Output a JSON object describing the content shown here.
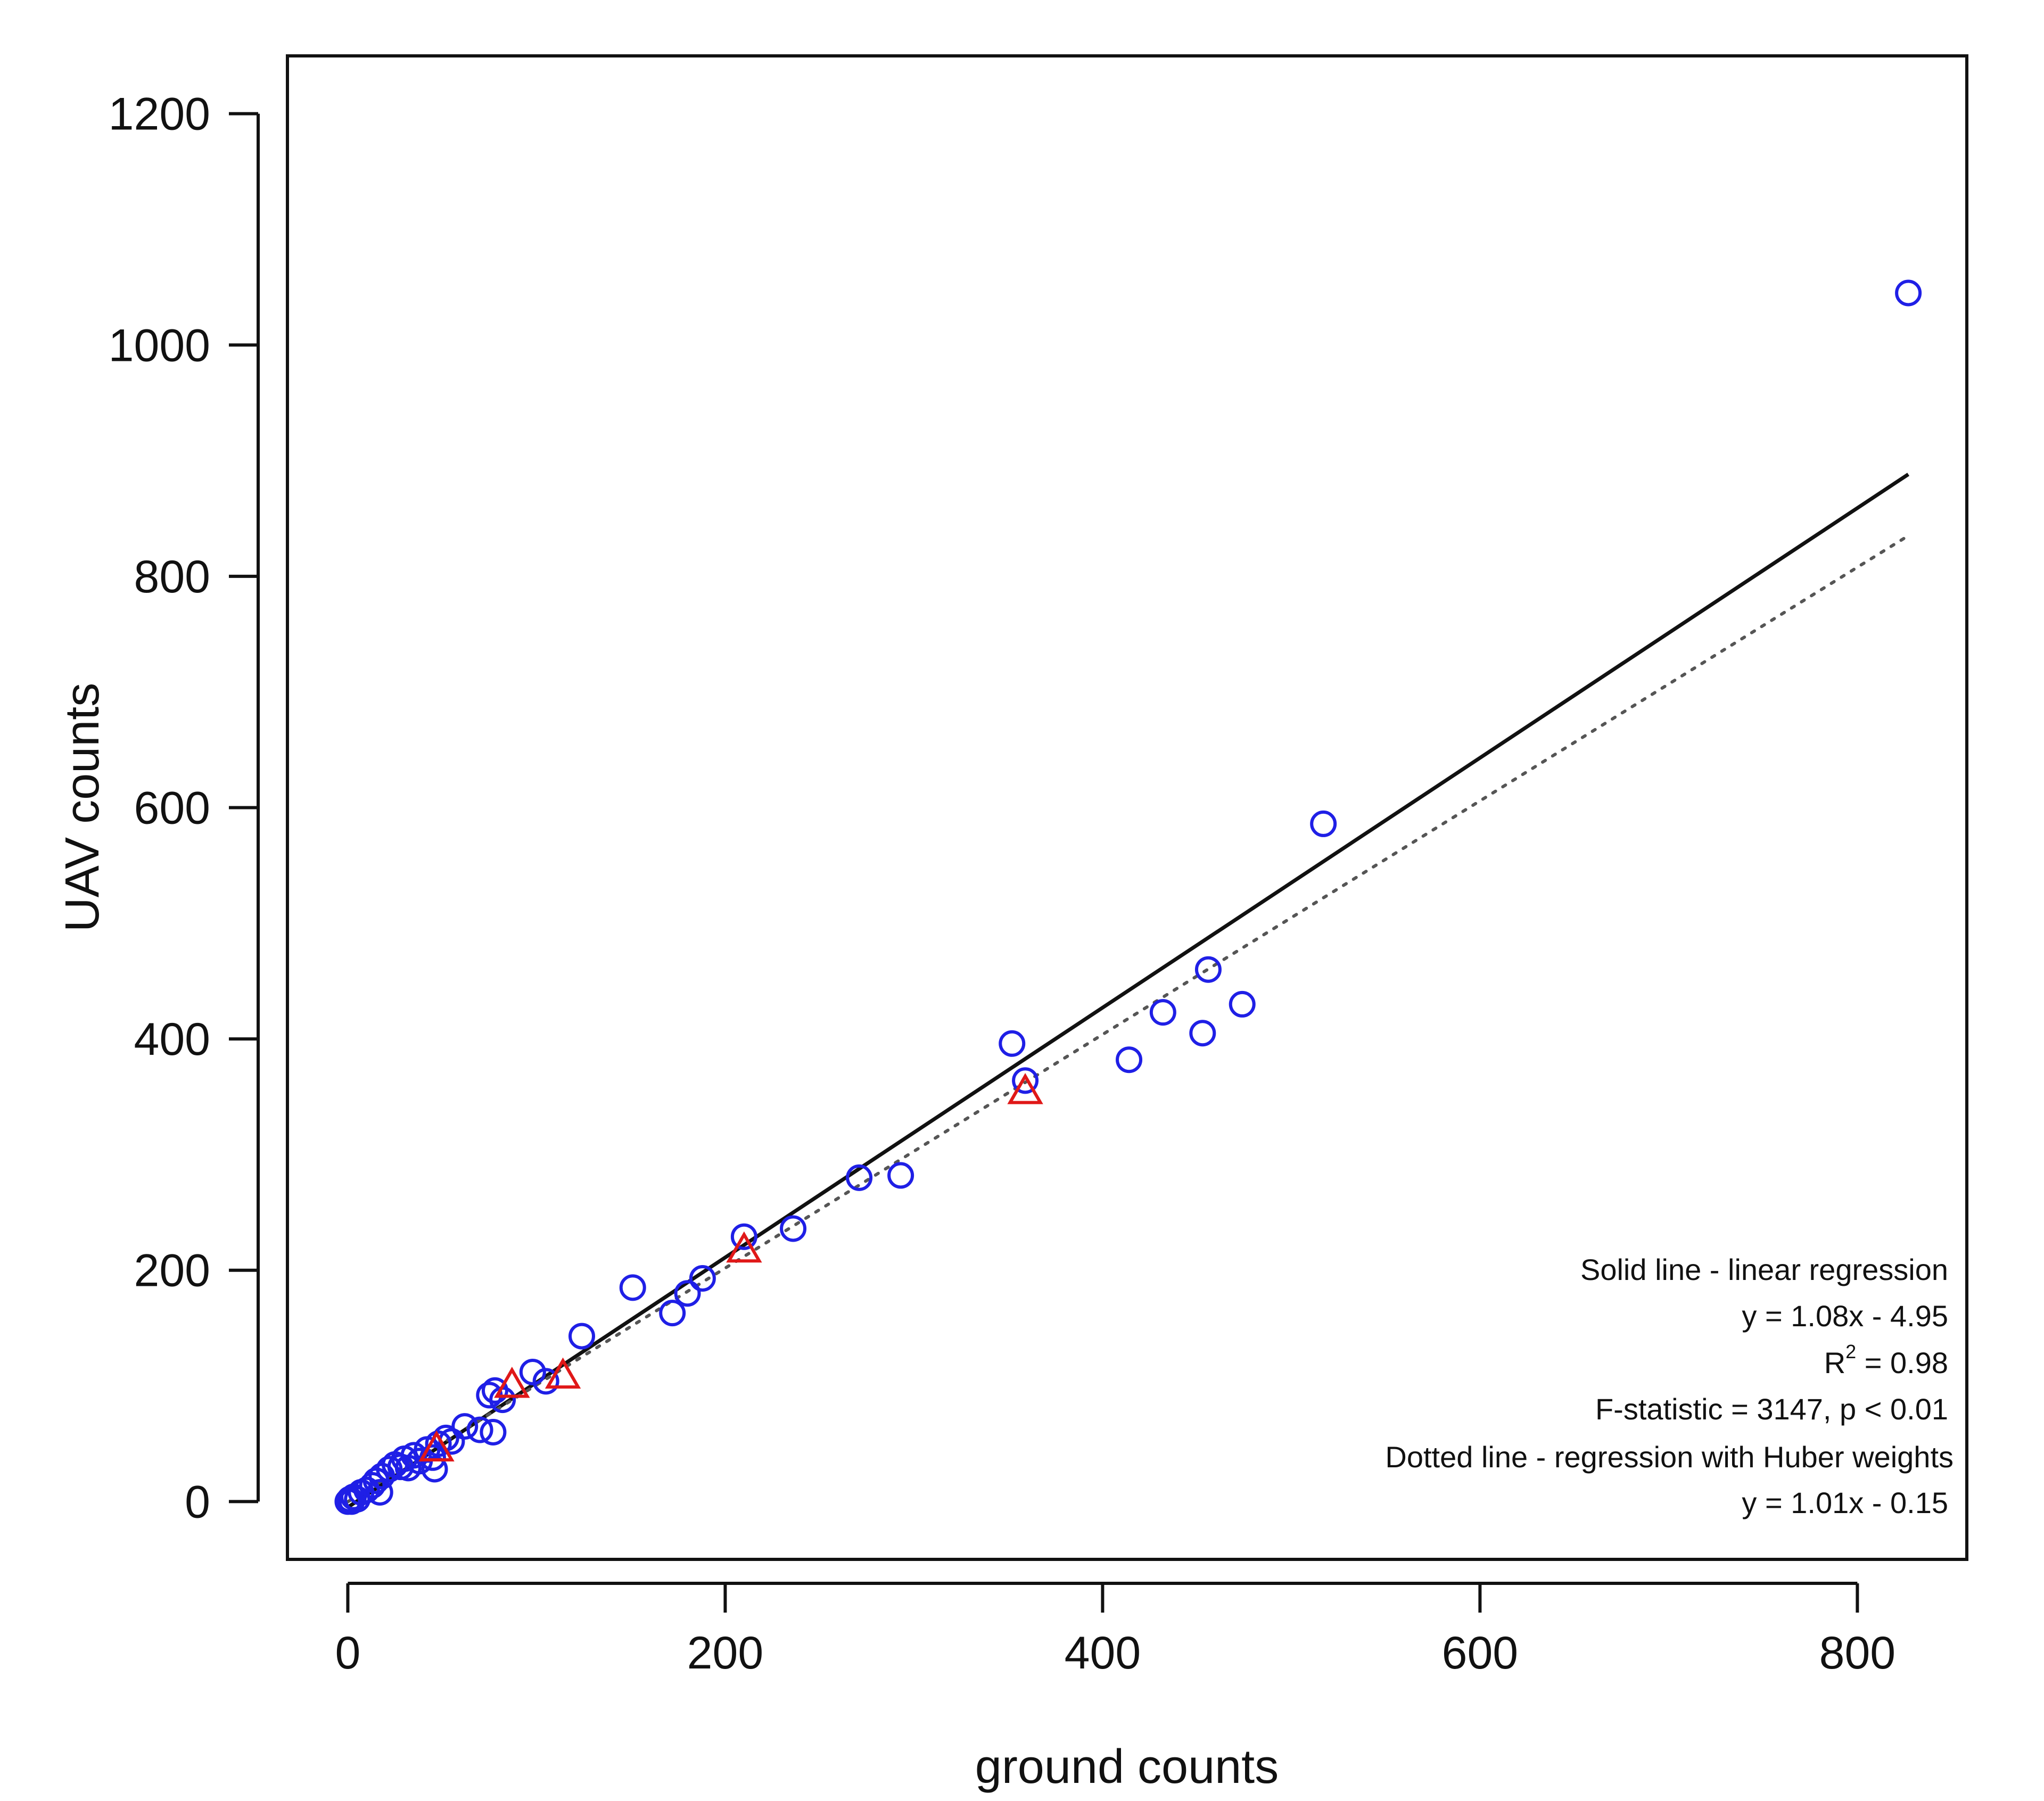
{
  "chart_data": {
    "type": "scatter",
    "xlabel": "ground counts",
    "ylabel": "UAV counts",
    "xlim": [
      -32,
      858
    ],
    "ylim": [
      -50,
      1250
    ],
    "x_ticks": [
      0,
      200,
      400,
      600,
      800
    ],
    "y_ticks": [
      0,
      200,
      400,
      600,
      800,
      1000,
      1200
    ],
    "x_tick_labels": [
      "0",
      "200",
      "400",
      "600",
      "800"
    ],
    "y_tick_labels": [
      "0",
      "200",
      "400",
      "600",
      "800",
      "1000",
      "1200"
    ],
    "grid": false,
    "series": [
      {
        "marker": "circle",
        "color": "#1f1fe6",
        "points": [
          [
            0,
            0
          ],
          [
            1,
            2
          ],
          [
            2,
            0
          ],
          [
            3,
            4
          ],
          [
            5,
            2
          ],
          [
            7,
            8
          ],
          [
            10,
            10
          ],
          [
            13,
            14
          ],
          [
            15,
            18
          ],
          [
            17,
            8
          ],
          [
            18,
            22
          ],
          [
            22,
            28
          ],
          [
            25,
            32
          ],
          [
            28,
            30
          ],
          [
            30,
            37
          ],
          [
            32,
            29
          ],
          [
            35,
            40
          ],
          [
            38,
            35
          ],
          [
            42,
            45
          ],
          [
            45,
            38
          ],
          [
            46,
            28
          ],
          [
            48,
            50
          ],
          [
            52,
            55
          ],
          [
            55,
            52
          ],
          [
            62,
            65
          ],
          [
            70,
            62
          ],
          [
            75,
            92
          ],
          [
            77,
            60
          ],
          [
            78,
            96
          ],
          [
            82,
            88
          ],
          [
            98,
            112
          ],
          [
            105,
            104
          ],
          [
            124,
            143
          ],
          [
            151,
            185
          ],
          [
            172,
            163
          ],
          [
            180,
            180
          ],
          [
            188,
            193
          ],
          [
            210,
            229
          ],
          [
            236,
            236
          ],
          [
            271,
            280
          ],
          [
            293,
            282
          ],
          [
            352,
            396
          ],
          [
            359,
            364
          ],
          [
            414,
            382
          ],
          [
            432,
            423
          ],
          [
            453,
            405
          ],
          [
            456,
            460
          ],
          [
            474,
            430
          ],
          [
            517,
            586
          ],
          [
            827,
            1045
          ]
        ]
      },
      {
        "marker": "triangle",
        "color": "#e01818",
        "points": [
          [
            47,
            45
          ],
          [
            87,
            100
          ],
          [
            114,
            108
          ],
          [
            210,
            217
          ],
          [
            359,
            354
          ]
        ]
      }
    ],
    "fit_lines": [
      {
        "style": "solid",
        "color": "#111111",
        "slope": 1.08,
        "intercept": -4.95,
        "x_range": [
          0,
          827
        ]
      },
      {
        "style": "dotted",
        "color": "#555555",
        "slope": 1.01,
        "intercept": -0.15,
        "x_range": [
          0,
          827
        ]
      }
    ],
    "annotation_position": "bottom-right",
    "annotations": {
      "line1": "Solid line - linear regression",
      "line2": "y = 1.08x - 4.95",
      "line3_prefix": "R",
      "line3_sup": "2",
      "line3_suffix": " = 0.98",
      "line4": "F-statistic = 3147, p < 0.01",
      "line5": "Dotted line - regression with Huber weights",
      "line6": "y = 1.01x - 0.15"
    }
  }
}
